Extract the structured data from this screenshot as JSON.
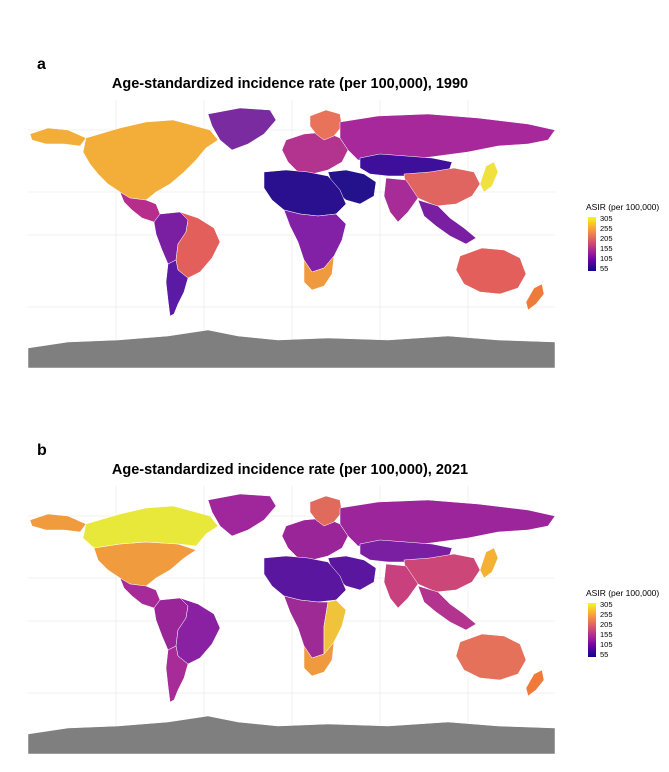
{
  "panels": [
    {
      "letter": "a",
      "title": "Age-standardized incidence rate (per 100,000), 1990",
      "legend": {
        "title": "ASIR (per 100,000)",
        "ticks": [
          "305",
          "255",
          "205",
          "155",
          "105",
          "55"
        ]
      },
      "region_colors": {
        "north_america": "#f3ad39",
        "greenland": "#7a2ba0",
        "alaska": "#f3ad39",
        "central_america": "#b62d8c",
        "south_america_north": "#7b1fa2",
        "brazil": "#e35f5b",
        "south_america_south": "#5a1aa4",
        "europe": "#b3348e",
        "scandinavia": "#e8735a",
        "russia": "#a6289a",
        "central_asia": "#3d0f9a",
        "middle_east": "#24128c",
        "china": "#e06560",
        "india": "#a82c98",
        "southeast_asia": "#7b1fa2",
        "japan": "#f0e040",
        "africa_north": "#2a0f8e",
        "africa_central": "#8221a6",
        "southern_africa": "#f09a3f",
        "australia": "#e35f5b",
        "new_zealand": "#f07a3a",
        "antarctica": "#7f7f7f"
      }
    },
    {
      "letter": "b",
      "title": "Age-standardized incidence rate (per 100,000), 2021",
      "legend": {
        "title": "ASIR (per 100,000)",
        "ticks": [
          "305",
          "255",
          "205",
          "155",
          "105",
          "55"
        ]
      },
      "region_colors": {
        "north_america": "#f09b3e",
        "greenland": "#a0269c",
        "alaska": "#f09b3e",
        "canada": "#e8e83a",
        "central_america": "#a62a98",
        "south_america_north": "#9a2599",
        "brazil": "#8a20a2",
        "south_america_south": "#a82c98",
        "europe": "#9a2599",
        "scandinavia": "#e06a5c",
        "russia": "#9c259b",
        "central_asia": "#7b1fa2",
        "middle_east": "#5b169f",
        "china": "#cc4778",
        "india": "#c8407e",
        "southeast_asia": "#b3348e",
        "japan": "#f5b133",
        "africa_north": "#5b169f",
        "africa_central": "#9e2a96",
        "east_africa": "#f0c43a",
        "southern_africa": "#f09a3f",
        "australia": "#e5715a",
        "new_zealand": "#f07a3a",
        "antarctica": "#7f7f7f"
      }
    }
  ]
}
